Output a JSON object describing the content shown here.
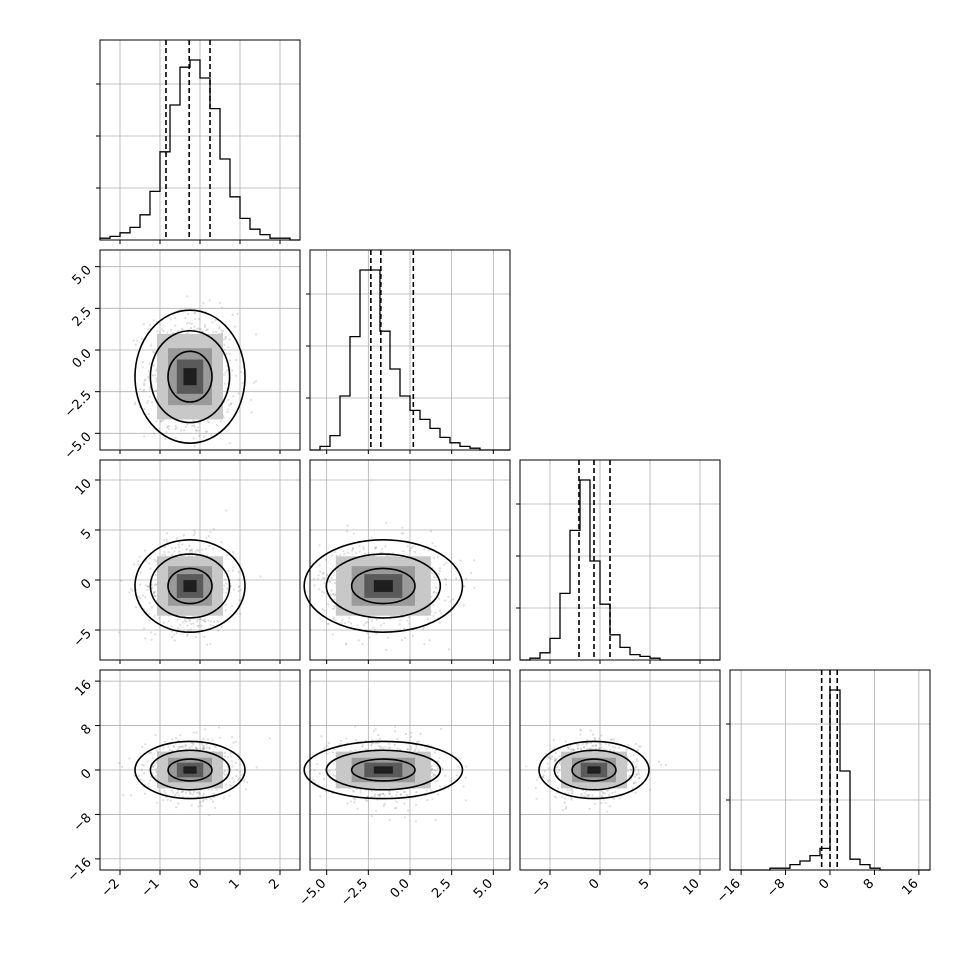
{
  "chart_data": {
    "type": "corner",
    "parameters": [
      {
        "range": [
          -2.5,
          2.5
        ],
        "ticks": [
          -2,
          -1,
          0,
          1,
          2
        ],
        "tick_labels": [
          "−2",
          "−1",
          "0",
          "1",
          "2"
        ],
        "quantiles": [
          -0.85,
          -0.27,
          0.25
        ],
        "hist": [
          1,
          2,
          4,
          7,
          14,
          27,
          49,
          75,
          96,
          100,
          90,
          73,
          45,
          24,
          12,
          6,
          3,
          1,
          1,
          0
        ]
      },
      {
        "range": [
          -6,
          6
        ],
        "ticks": [
          -5.0,
          -2.5,
          0.0,
          2.5,
          5.0
        ],
        "tick_labels": [
          "−5.0",
          "−2.5",
          "0.0",
          "2.5",
          "5.0"
        ],
        "quantiles": [
          -2.35,
          -1.75,
          0.2
        ],
        "hist": [
          0,
          2,
          8,
          30,
          63,
          100,
          100,
          66,
          45,
          30,
          22,
          17,
          12,
          7,
          4,
          2,
          1,
          0,
          0,
          0
        ]
      },
      {
        "range": [
          -8,
          12
        ],
        "ticks": [
          -5,
          0,
          5,
          10
        ],
        "tick_labels": [
          "−5",
          "0",
          "5",
          "10"
        ],
        "quantiles": [
          -2.1,
          -0.6,
          1.0
        ],
        "hist": [
          0,
          1,
          4,
          12,
          37,
          72,
          100,
          55,
          31,
          14,
          7,
          3,
          2,
          1,
          0,
          0,
          0,
          0,
          0,
          0
        ]
      },
      {
        "range": [
          -18,
          18
        ],
        "ticks": [
          -16,
          -8,
          0,
          8,
          16
        ],
        "tick_labels": [
          "−16",
          "−8",
          "0",
          "8",
          "16"
        ],
        "quantiles": [
          -1.5,
          0,
          1.3
        ],
        "hist": [
          0,
          0,
          0,
          0,
          1,
          1,
          3,
          5,
          8,
          12,
          100,
          55,
          6,
          3,
          1,
          0,
          0,
          0,
          0,
          0
        ]
      }
    ],
    "y_ticks_2d": [
      {
        "ticks": [
          5.0,
          2.5,
          0.0,
          -2.5,
          -5.0
        ],
        "tick_labels": [
          "5.0",
          "2.5",
          "0.0",
          "−2.5",
          "−5.0"
        ]
      },
      {
        "ticks": [
          10,
          5,
          0,
          -5
        ],
        "tick_labels": [
          "10",
          "5",
          "0",
          "−5"
        ]
      },
      {
        "ticks": [
          16,
          8,
          0,
          -8,
          -16
        ],
        "tick_labels": [
          "16",
          "8",
          "0",
          "−8",
          "−16"
        ]
      }
    ],
    "grid": true,
    "quantile_style": "dashed"
  }
}
